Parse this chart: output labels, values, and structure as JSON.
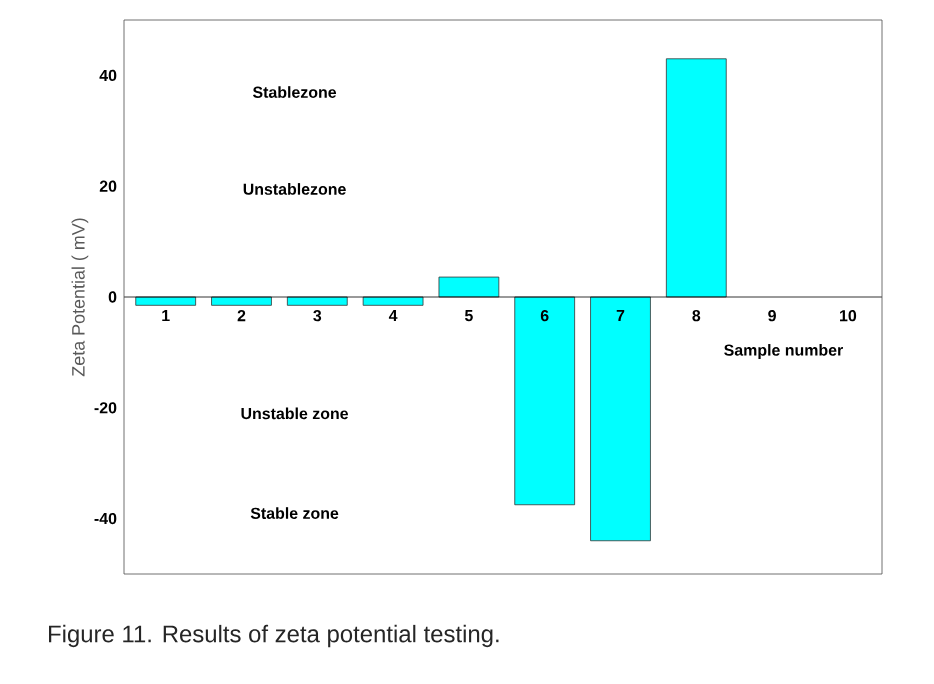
{
  "chart_data": {
    "type": "bar",
    "title": "Figure 11. Results of zeta potential testing.",
    "xlabel": "Sample number",
    "ylabel": "Zeta Potential  ( mV)",
    "categories": [
      "1",
      "2",
      "3",
      "4",
      "5",
      "6",
      "7",
      "8",
      "9",
      "10"
    ],
    "values": [
      -1.5,
      -1.5,
      -1.5,
      -1.5,
      3.6,
      -37.5,
      -44,
      43,
      null,
      null
    ],
    "color": "#00ffff",
    "ylim": [
      -50,
      50
    ],
    "yticks": [
      -40,
      -20,
      0,
      20,
      40
    ],
    "annotations": [
      "Stablezone",
      "Unstablezone",
      "Unstable zone",
      "Stable zone"
    ]
  }
}
